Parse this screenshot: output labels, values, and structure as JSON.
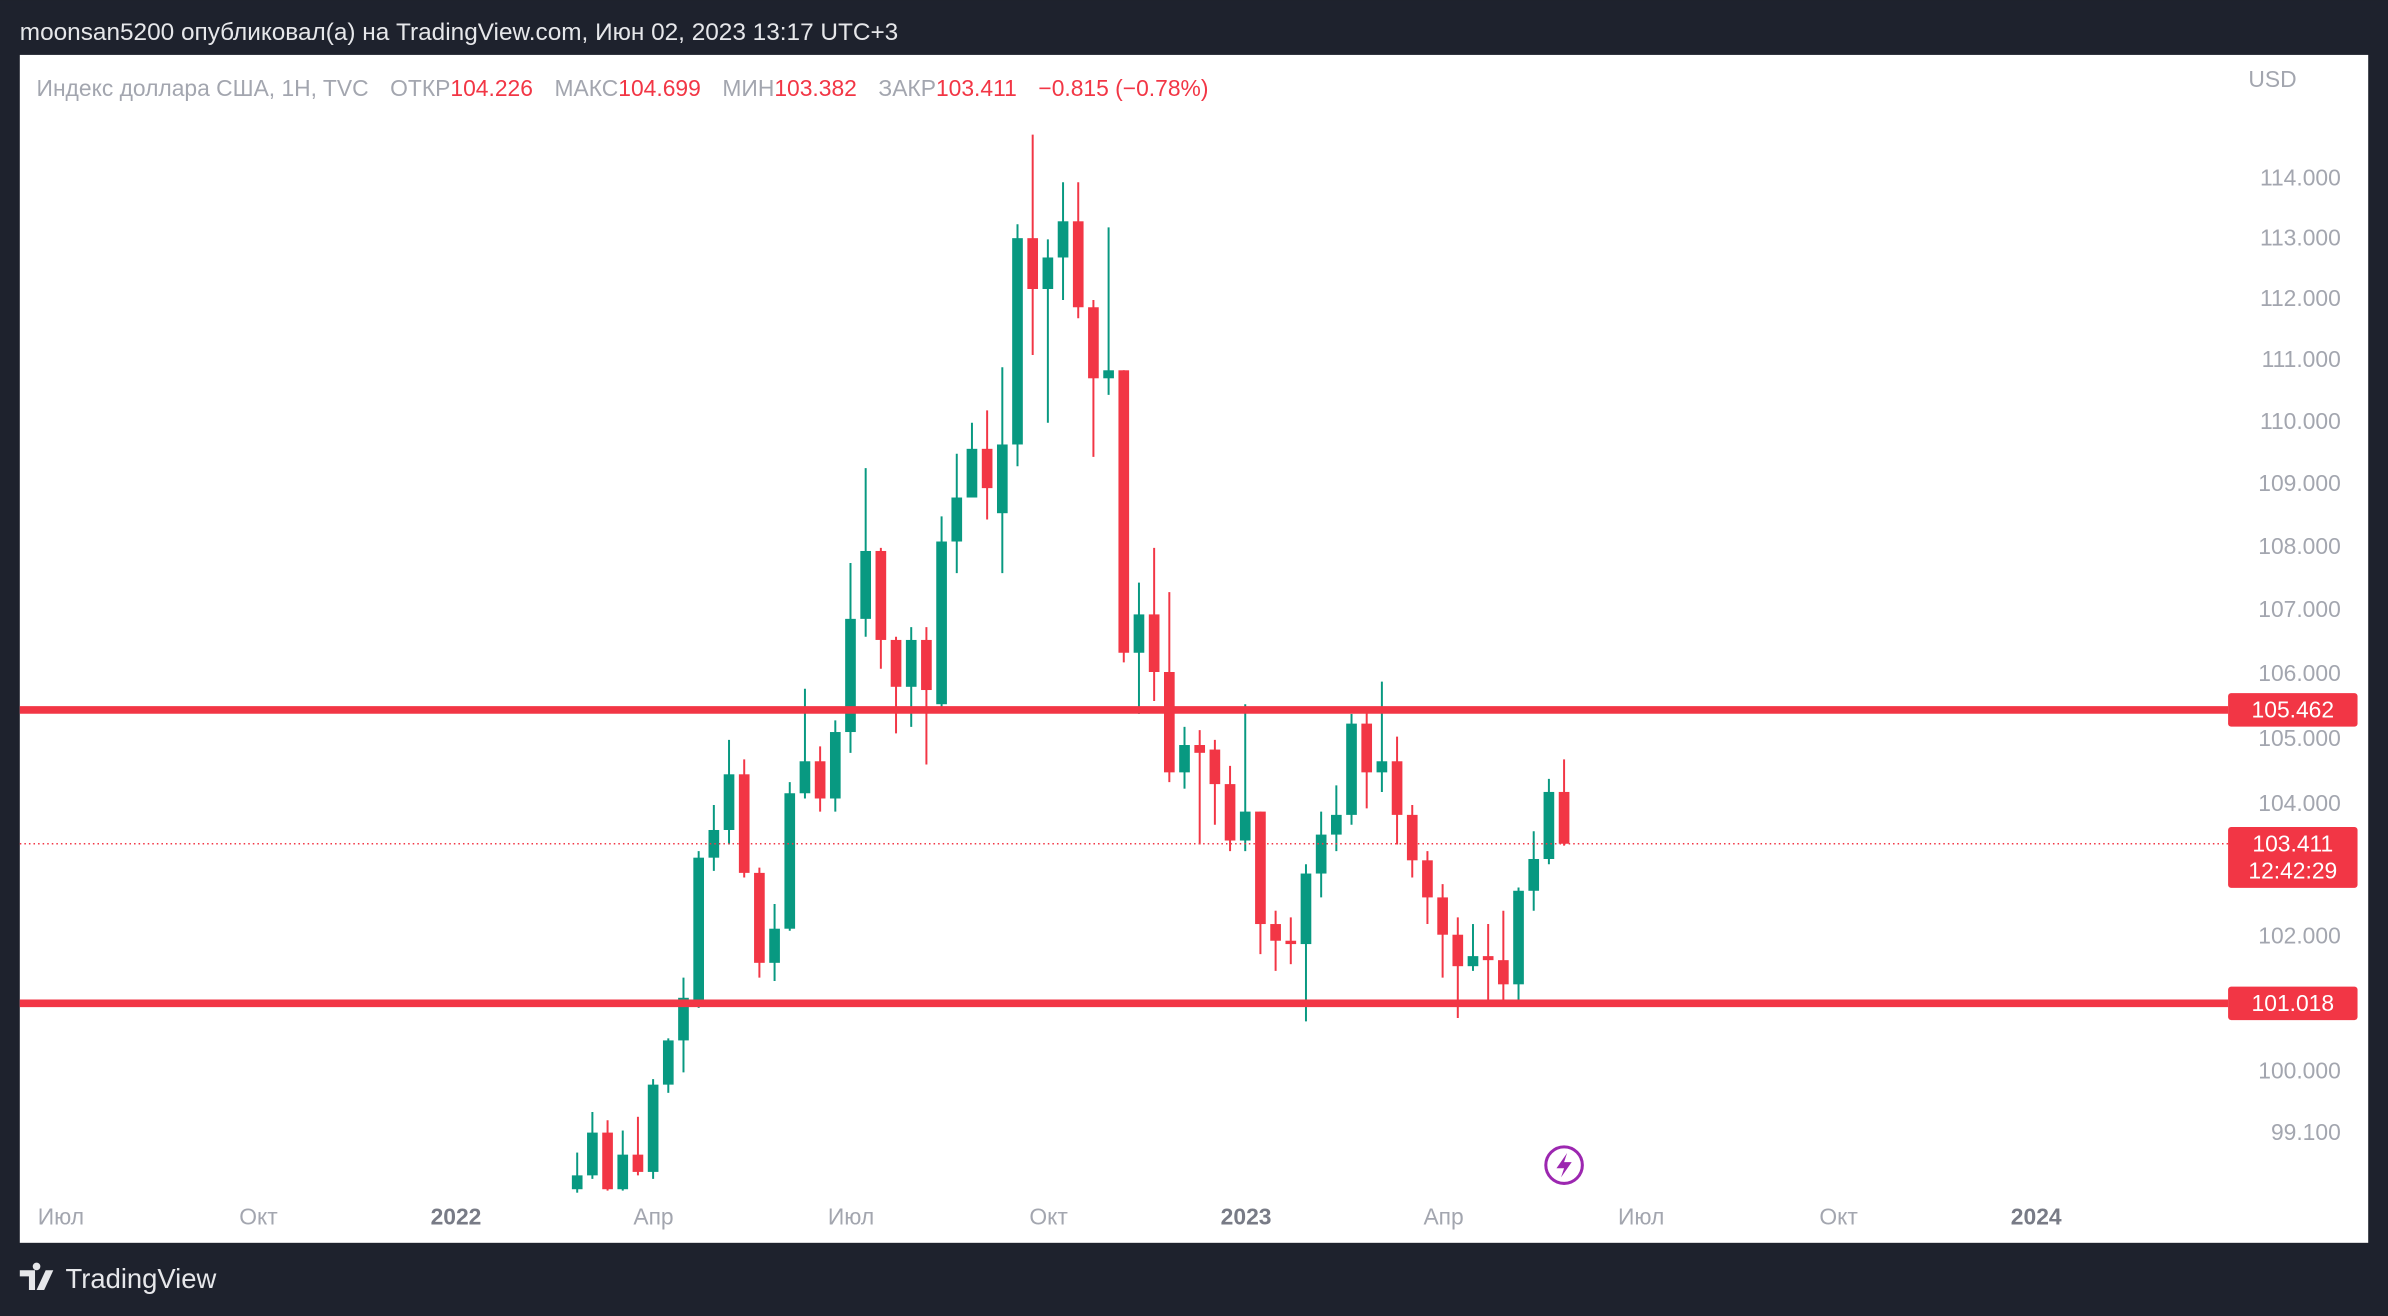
{
  "header": {
    "publisher": "moonsan5200 опубликовал(а) на TradingView.com, Июн 02, 2023 13:17 UTC+3"
  },
  "chart_data": {
    "type": "candlestick",
    "symbol": "Индекс доллара США, 1H, TVC",
    "legend": [
      {
        "label": "ОТКР",
        "value": 104.226
      },
      {
        "label": "МАКС",
        "value": 104.699
      },
      {
        "label": "МИН",
        "value": 103.382
      },
      {
        "label": "ЗАКР",
        "value": 103.411
      }
    ],
    "change_label": "−0.815 (−0.78%)",
    "currency": "USD",
    "up_color": "#089981",
    "down_color": "#f23645",
    "open": [
      98.3,
      98.5,
      99.12,
      98.3,
      98.8,
      98.55,
      99.82,
      100.47,
      101.06,
      103.2,
      103.62,
      104.47,
      102.97,
      101.62,
      102.13,
      104.18,
      104.67,
      104.1,
      105.12,
      106.88,
      107.95,
      106.55,
      105.82,
      106.55,
      105.55,
      108.1,
      108.8,
      109.58,
      108.55,
      109.65,
      113.02,
      112.18,
      112.7,
      113.3,
      111.88,
      110.72,
      110.85,
      106.35,
      106.95,
      106.05,
      104.5,
      104.92,
      104.85,
      104.32,
      103.46,
      103.9,
      102.2,
      101.95,
      101.9,
      102.96,
      103.55,
      103.85,
      105.25,
      104.5,
      104.67,
      103.85,
      103.16,
      102.6,
      102.04,
      101.57,
      101.72,
      101.66,
      101.3,
      102.7,
      103.18,
      104.2
    ],
    "high": [
      98.83,
      99.42,
      99.3,
      99.15,
      99.35,
      99.9,
      100.5,
      101.4,
      103.3,
      104.0,
      105.0,
      104.7,
      103.05,
      102.5,
      104.35,
      105.79,
      104.9,
      105.3,
      107.76,
      109.27,
      108.0,
      106.6,
      106.75,
      106.75,
      108.5,
      109.5,
      110.0,
      110.2,
      110.9,
      113.25,
      114.75,
      113.0,
      113.95,
      113.95,
      112.0,
      113.2,
      110.85,
      107.45,
      108.0,
      107.3,
      105.2,
      105.15,
      105.0,
      104.6,
      105.55,
      103.9,
      102.4,
      102.3,
      103.1,
      103.9,
      104.3,
      105.4,
      105.42,
      105.9,
      105.05,
      104.0,
      103.3,
      102.8,
      102.3,
      102.2,
      102.2,
      102.4,
      102.75,
      103.6,
      104.4,
      104.699
    ],
    "low": [
      98.25,
      98.45,
      98.28,
      98.28,
      98.5,
      98.45,
      99.7,
      100.0,
      100.95,
      103.0,
      103.4,
      102.9,
      101.4,
      101.35,
      102.1,
      104.1,
      103.9,
      103.9,
      104.8,
      106.6,
      106.1,
      105.1,
      105.2,
      104.62,
      105.5,
      107.6,
      108.9,
      108.45,
      107.6,
      109.3,
      111.1,
      110.0,
      112.0,
      111.7,
      109.45,
      110.45,
      106.2,
      105.4,
      105.6,
      104.35,
      104.25,
      103.4,
      103.7,
      103.3,
      103.3,
      101.75,
      101.5,
      101.6,
      100.75,
      102.6,
      103.3,
      103.7,
      103.95,
      104.2,
      103.4,
      102.9,
      102.2,
      101.4,
      100.8,
      101.5,
      101.05,
      101.05,
      101.05,
      102.4,
      103.1,
      103.382
    ],
    "close": [
      98.5,
      99.12,
      98.3,
      98.8,
      98.55,
      99.82,
      100.47,
      101.1,
      103.2,
      103.62,
      104.47,
      102.97,
      101.62,
      102.13,
      104.18,
      104.67,
      104.1,
      105.12,
      106.88,
      107.95,
      106.55,
      105.82,
      106.55,
      105.77,
      108.1,
      108.8,
      109.58,
      108.95,
      109.65,
      113.02,
      112.18,
      112.7,
      113.3,
      111.88,
      110.72,
      110.85,
      106.35,
      106.95,
      106.05,
      104.5,
      104.92,
      104.8,
      104.32,
      103.46,
      103.9,
      102.2,
      101.95,
      101.9,
      102.96,
      103.55,
      103.85,
      105.25,
      104.5,
      104.67,
      103.85,
      103.16,
      102.6,
      102.04,
      101.57,
      101.72,
      101.66,
      101.3,
      102.7,
      103.18,
      104.2,
      103.411
    ],
    "x_labels": [
      "Июл",
      "Окт",
      "2022",
      "Апр",
      "Июл",
      "Окт",
      "2023",
      "Апр",
      "Июл",
      "Окт",
      "2024"
    ],
    "log_scale": true,
    "ylim": [
      97.53,
      116.1
    ],
    "yticks": [
      {
        "value": 114,
        "label": "114.000"
      },
      {
        "value": 113,
        "label": "113.000"
      },
      {
        "value": 112,
        "label": "112.000"
      },
      {
        "value": 111,
        "label": "111.000"
      },
      {
        "value": 110,
        "label": "110.000"
      },
      {
        "value": 109,
        "label": "109.000"
      },
      {
        "value": 108,
        "label": "108.000"
      },
      {
        "value": 107,
        "label": "107.000"
      },
      {
        "value": 106,
        "label": "106.000"
      },
      {
        "value": 105,
        "label": "105.000"
      },
      {
        "value": 104,
        "label": "104.000"
      },
      {
        "value": 102,
        "label": "102.000"
      },
      {
        "value": 100,
        "label": "100.000"
      },
      {
        "value": 99.1,
        "label": "99.100"
      }
    ],
    "levels": [
      105.462,
      101.018
    ],
    "level_color": "#f23645",
    "last_price": 103.411,
    "countdown": "12:42:29"
  },
  "footer": {
    "logo": "TradingView"
  }
}
